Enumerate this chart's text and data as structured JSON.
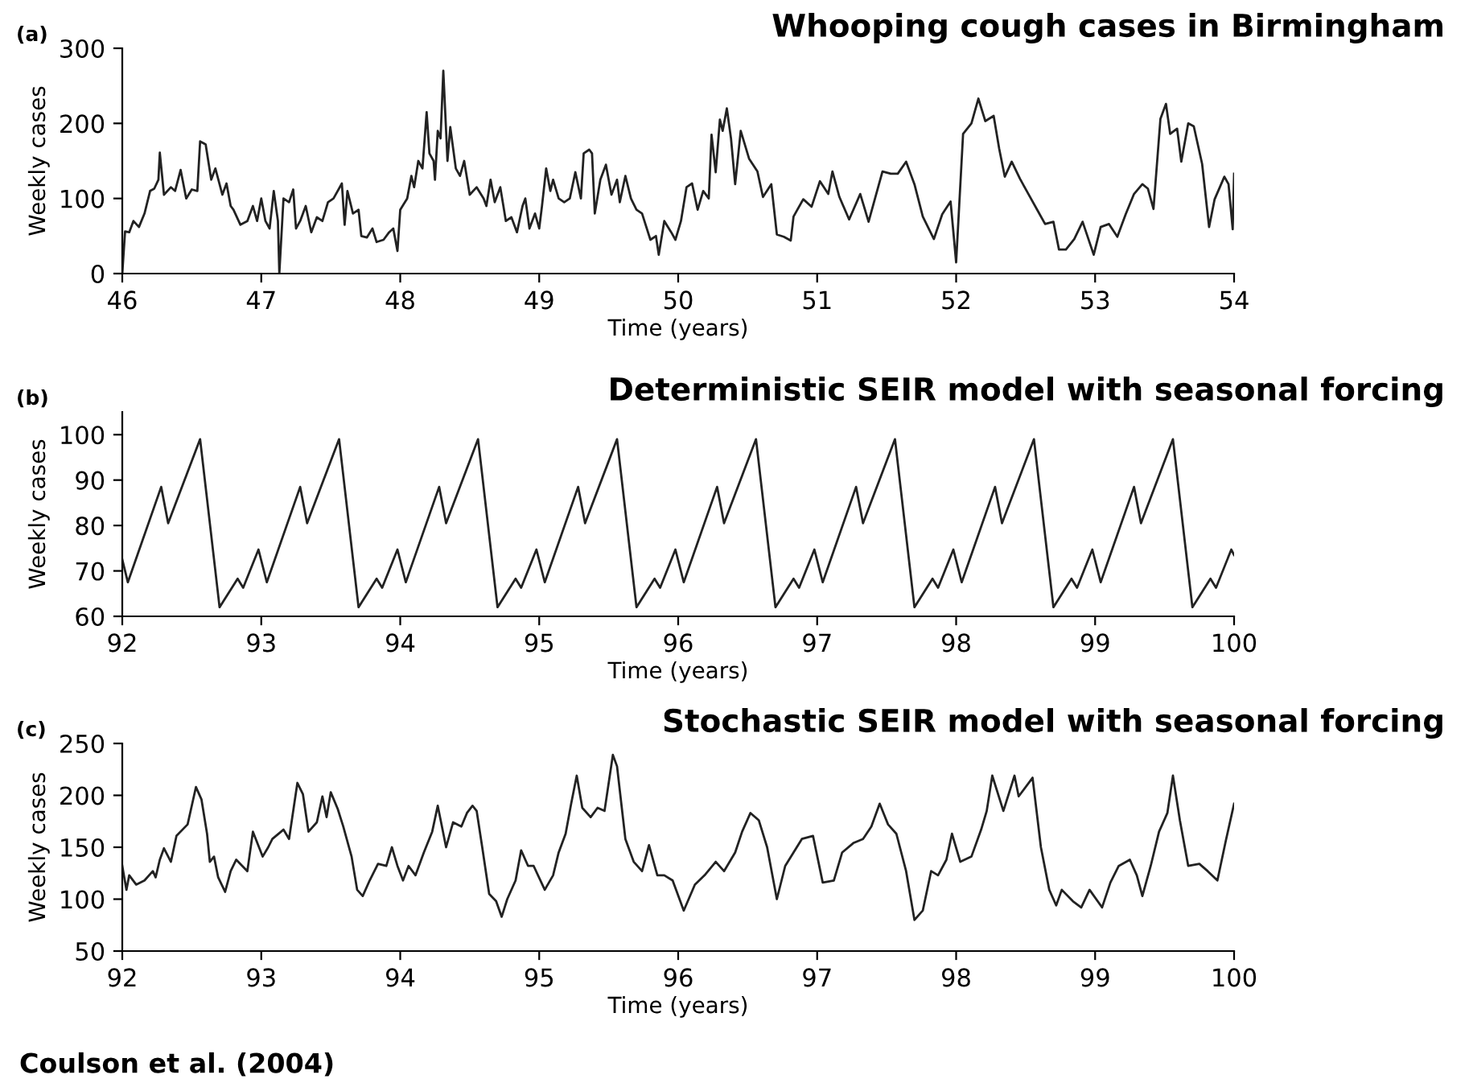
{
  "chart_data": [
    {
      "type": "line",
      "title": "Whooping cough cases in Birmingham",
      "xlabel": "Time (years)",
      "ylabel": "Weekly cases",
      "annotations": [
        "(a)"
      ],
      "xlim": [
        46,
        54
      ],
      "xticks": [
        46,
        47,
        48,
        49,
        50,
        51,
        52,
        53,
        54
      ],
      "ylim": [
        0,
        300
      ],
      "yticks": [
        0,
        100,
        200,
        300
      ],
      "grid": false,
      "legend": false,
      "series": [
        {
          "color": "#222222",
          "x": [
            46.0,
            46.02,
            46.05,
            46.08,
            46.12,
            46.16,
            46.2,
            46.23,
            46.26,
            46.27,
            46.3,
            46.35,
            46.38,
            46.42,
            46.46,
            46.5,
            46.54,
            46.56,
            46.6,
            46.64,
            46.67,
            46.72,
            46.75,
            46.78,
            46.8,
            46.85,
            46.9,
            46.94,
            46.97,
            47.0,
            47.03,
            47.06,
            47.09,
            47.12,
            47.13,
            47.16,
            47.2,
            47.23,
            47.25,
            47.28,
            47.32,
            47.36,
            47.4,
            47.44,
            47.48,
            47.52,
            47.58,
            47.6,
            47.62,
            47.66,
            47.7,
            47.72,
            47.76,
            47.8,
            47.83,
            47.88,
            47.92,
            47.95,
            47.98,
            48.0,
            48.05,
            48.08,
            48.1,
            48.13,
            48.16,
            48.19,
            48.21,
            48.24,
            48.25,
            48.27,
            48.29,
            48.31,
            48.34,
            48.36,
            48.4,
            48.43,
            48.46,
            48.5,
            48.55,
            48.6,
            48.62,
            48.65,
            48.68,
            48.72,
            48.76,
            48.8,
            48.84,
            48.88,
            48.9,
            48.93,
            48.97,
            49.0,
            49.02,
            49.05,
            49.08,
            49.1,
            49.14,
            49.18,
            49.22,
            49.26,
            49.3,
            49.32,
            49.36,
            49.38,
            49.4,
            49.44,
            49.48,
            49.52,
            49.56,
            49.58,
            49.62,
            49.66,
            49.7,
            49.74,
            49.8,
            49.84,
            49.86,
            49.9,
            49.95,
            49.98,
            50.02,
            50.06,
            50.1,
            50.14,
            50.18,
            50.22,
            50.24,
            50.27,
            50.3,
            50.32,
            50.35,
            50.38,
            50.41,
            50.45,
            50.51,
            50.57,
            50.61,
            50.67,
            50.71,
            50.76,
            50.81,
            50.83,
            50.9,
            50.96,
            51.02,
            51.08,
            51.11,
            51.16,
            51.23,
            51.31,
            51.37,
            51.47,
            51.53,
            51.58,
            51.64,
            51.7,
            51.76,
            51.84,
            51.9,
            51.96,
            52.0,
            52.05,
            52.11,
            52.16,
            52.21,
            52.27,
            52.31,
            52.35,
            52.4,
            52.46,
            52.52,
            52.58,
            52.64,
            52.7,
            52.74,
            52.79,
            52.85,
            52.91,
            52.99,
            53.04,
            53.1,
            53.16,
            53.22,
            53.28,
            53.34,
            53.38,
            53.42,
            53.47,
            53.51,
            53.54,
            53.59,
            53.62,
            53.67,
            53.71,
            53.77,
            53.82,
            53.86,
            53.93,
            53.96,
            53.99,
            54.0
          ],
          "values": [
            0,
            56,
            55,
            70,
            62,
            80,
            110,
            113,
            125,
            161,
            105,
            115,
            110,
            138,
            100,
            112,
            110,
            176,
            172,
            125,
            140,
            105,
            120,
            90,
            85,
            65,
            70,
            90,
            70,
            100,
            70,
            60,
            110,
            70,
            0,
            100,
            95,
            112,
            60,
            70,
            90,
            55,
            75,
            70,
            95,
            100,
            120,
            65,
            110,
            80,
            85,
            50,
            48,
            60,
            42,
            45,
            55,
            60,
            30,
            85,
            100,
            130,
            115,
            150,
            140,
            215,
            160,
            150,
            125,
            190,
            180,
            270,
            150,
            195,
            140,
            130,
            150,
            105,
            115,
            100,
            90,
            125,
            95,
            115,
            70,
            75,
            55,
            90,
            100,
            60,
            80,
            60,
            90,
            140,
            110,
            125,
            100,
            95,
            100,
            135,
            100,
            160,
            165,
            160,
            80,
            125,
            145,
            105,
            125,
            95,
            130,
            100,
            85,
            80,
            45,
            50,
            25,
            70,
            55,
            45,
            70,
            115,
            120,
            85,
            110,
            100,
            185,
            135,
            205,
            190,
            220,
            180,
            119,
            190,
            153,
            136,
            102,
            119,
            52,
            49,
            44,
            76,
            99,
            89,
            123,
            106,
            136,
            102,
            72,
            106,
            69,
            136,
            133,
            133,
            149,
            119,
            76,
            46,
            79,
            96,
            15,
            186,
            200,
            233,
            203,
            210,
            166,
            129,
            149,
            126,
            106,
            86,
            66,
            69,
            32,
            32,
            46,
            69,
            25,
            62,
            66,
            49,
            79,
            106,
            119,
            113,
            86,
            206,
            226,
            186,
            193,
            149,
            200,
            196,
            146,
            62,
            99,
            129,
            119,
            59,
            133
          ]
        }
      ]
    },
    {
      "type": "line",
      "title": "Deterministic SEIR model with seasonal forcing",
      "xlabel": "Time (years)",
      "ylabel": "Weekly cases",
      "annotations": [
        "(b)"
      ],
      "xlim": [
        92,
        100
      ],
      "xticks": [
        92,
        93,
        94,
        95,
        96,
        97,
        98,
        99,
        100
      ],
      "ylim": [
        60,
        105
      ],
      "yticks": [
        60,
        70,
        80,
        90,
        100
      ],
      "grid": false,
      "legend": false,
      "series": [
        {
          "color": "#222222",
          "x": [
            92.0,
            92.04,
            92.28,
            92.33,
            92.56,
            92.7,
            92.83,
            92.87,
            92.98,
            93.04,
            93.28,
            93.33,
            93.56,
            93.7,
            93.83,
            93.87,
            93.98,
            94.04,
            94.28,
            94.33,
            94.56,
            94.7,
            94.83,
            94.87,
            94.98,
            95.04,
            95.28,
            95.33,
            95.56,
            95.7,
            95.83,
            95.87,
            95.98,
            96.04,
            96.28,
            96.33,
            96.56,
            96.7,
            96.83,
            96.87,
            96.98,
            97.04,
            97.28,
            97.33,
            97.56,
            97.7,
            97.83,
            97.87,
            97.98,
            98.04,
            98.28,
            98.33,
            98.56,
            98.7,
            98.83,
            98.87,
            98.98,
            99.04,
            99.28,
            99.33,
            99.56,
            99.7,
            99.83,
            99.87,
            99.98,
            100.0
          ],
          "values": [
            72.5,
            67.5,
            88.5,
            80.5,
            99,
            62,
            68.3,
            66.3,
            74.7,
            67.5,
            88.5,
            80.5,
            99,
            62,
            68.3,
            66.3,
            74.7,
            67.5,
            88.5,
            80.5,
            99,
            62,
            68.3,
            66.3,
            74.7,
            67.5,
            88.5,
            80.5,
            99,
            62,
            68.3,
            66.3,
            74.7,
            67.5,
            88.5,
            80.5,
            99,
            62,
            68.3,
            66.3,
            74.7,
            67.5,
            88.5,
            80.5,
            99,
            62,
            68.3,
            66.3,
            74.7,
            67.5,
            88.5,
            80.5,
            99,
            62,
            68.3,
            66.3,
            74.7,
            67.5,
            88.5,
            80.5,
            99,
            62,
            68.3,
            66.3,
            74.7,
            73.5
          ]
        }
      ]
    },
    {
      "type": "line",
      "title": "Stochastic SEIR model with seasonal forcing",
      "xlabel": "Time (years)",
      "ylabel": "Weekly cases",
      "annotations": [
        "(c)",
        "Coulson et al. (2004)"
      ],
      "xlim": [
        92,
        100
      ],
      "xticks": [
        92,
        93,
        94,
        95,
        96,
        97,
        98,
        99,
        100
      ],
      "ylim": [
        50,
        250
      ],
      "yticks": [
        50,
        100,
        150,
        200,
        250
      ],
      "grid": false,
      "legend": false,
      "series": [
        {
          "color": "#222222",
          "x": [
            92.0,
            92.03,
            92.05,
            92.1,
            92.16,
            92.22,
            92.24,
            92.27,
            92.3,
            92.35,
            92.39,
            92.47,
            92.53,
            92.57,
            92.61,
            92.63,
            92.66,
            92.69,
            92.74,
            92.78,
            92.82,
            92.9,
            92.94,
            93.01,
            93.05,
            93.08,
            93.16,
            93.2,
            93.26,
            93.3,
            93.34,
            93.4,
            93.44,
            93.47,
            93.5,
            93.55,
            93.59,
            93.65,
            93.69,
            93.73,
            93.78,
            93.84,
            93.9,
            93.94,
            93.98,
            94.02,
            94.06,
            94.11,
            94.17,
            94.23,
            94.27,
            94.33,
            94.38,
            94.44,
            94.48,
            94.52,
            94.55,
            94.59,
            94.64,
            94.69,
            94.73,
            94.77,
            94.83,
            94.87,
            94.92,
            94.96,
            95.04,
            95.1,
            95.14,
            95.19,
            95.23,
            95.27,
            95.31,
            95.37,
            95.42,
            95.47,
            95.53,
            95.56,
            95.62,
            95.68,
            95.74,
            95.79,
            95.85,
            95.9,
            95.96,
            96.04,
            96.12,
            96.19,
            96.27,
            96.33,
            96.41,
            96.46,
            96.52,
            96.58,
            96.64,
            96.71,
            96.77,
            96.83,
            96.89,
            96.97,
            97.04,
            97.12,
            97.18,
            97.26,
            97.33,
            97.39,
            97.45,
            97.51,
            97.57,
            97.64,
            97.7,
            97.76,
            97.82,
            97.87,
            97.93,
            97.97,
            98.03,
            98.11,
            98.18,
            98.22,
            98.26,
            98.34,
            98.42,
            98.45,
            98.55,
            98.61,
            98.67,
            98.72,
            98.76,
            98.84,
            98.9,
            98.96,
            99.05,
            99.11,
            99.17,
            99.25,
            99.3,
            99.34,
            99.4,
            99.46,
            99.52,
            99.56,
            99.61,
            99.67,
            99.75,
            99.81,
            99.88,
            99.94,
            100.0
          ],
          "values": [
            132,
            109,
            123,
            114,
            118,
            127,
            121,
            138,
            149,
            136,
            161,
            172,
            208,
            196,
            163,
            136,
            141,
            121,
            107,
            127,
            138,
            127,
            165,
            141,
            150,
            158,
            167,
            158,
            212,
            201,
            165,
            174,
            199,
            179,
            203,
            187,
            170,
            141,
            109,
            103,
            118,
            134,
            132,
            150,
            132,
            118,
            132,
            123,
            145,
            165,
            190,
            150,
            174,
            170,
            183,
            190,
            185,
            150,
            105,
            98,
            83,
            100,
            118,
            147,
            132,
            132,
            109,
            123,
            145,
            163,
            192,
            219,
            188,
            179,
            188,
            185,
            239,
            228,
            158,
            136,
            127,
            152,
            123,
            123,
            118,
            89,
            114,
            123,
            136,
            127,
            145,
            165,
            183,
            176,
            150,
            100,
            132,
            145,
            158,
            161,
            116,
            118,
            145,
            154,
            158,
            170,
            192,
            172,
            163,
            127,
            80,
            89,
            127,
            123,
            138,
            163,
            136,
            141,
            167,
            185,
            219,
            185,
            219,
            199,
            217,
            150,
            109,
            94,
            109,
            98,
            92,
            109,
            92,
            116,
            132,
            138,
            123,
            103,
            132,
            165,
            183,
            219,
            176,
            132,
            134,
            127,
            118,
            156,
            192
          ]
        }
      ]
    }
  ]
}
